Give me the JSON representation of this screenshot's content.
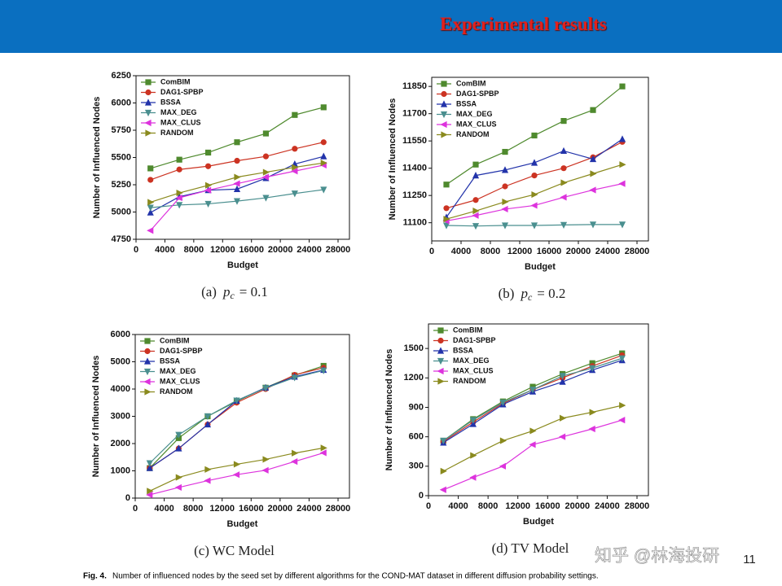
{
  "header": {
    "title": "Experimental results"
  },
  "chart_data": [
    {
      "type": "line",
      "caption": {
        "label": "(a)",
        "var": "p",
        "sub": "c",
        "rest": "= 0.1"
      },
      "x_label": "Budget",
      "y_label": "Number of Influenced Nodes",
      "legend": "upper left",
      "x": [
        2000,
        6000,
        10000,
        14000,
        18000,
        22000,
        26000
      ],
      "xlim": [
        0,
        28000
      ],
      "xticks": [
        0,
        4000,
        8000,
        12000,
        16000,
        20000,
        24000,
        28000
      ],
      "ylim": [
        4750,
        6250
      ],
      "yticks": [
        4750,
        5000,
        5250,
        5500,
        5750,
        6000,
        6250
      ],
      "series": [
        {
          "name": "ComBIM",
          "color": "#4f8a2e",
          "marker": "square",
          "values": [
            5400,
            5480,
            5545,
            5640,
            5720,
            5890,
            5960
          ]
        },
        {
          "name": "DAG1-SPBP",
          "color": "#cc3322",
          "marker": "circle",
          "values": [
            5295,
            5390,
            5420,
            5470,
            5510,
            5580,
            5640
          ]
        },
        {
          "name": "BSSA",
          "color": "#2233aa",
          "marker": "up",
          "values": [
            4995,
            5140,
            5200,
            5210,
            5310,
            5440,
            5510
          ]
        },
        {
          "name": "MAX_DEG",
          "color": "#4a8f8f",
          "marker": "down",
          "values": [
            5040,
            5065,
            5075,
            5100,
            5130,
            5170,
            5205
          ]
        },
        {
          "name": "MAX_CLUS",
          "color": "#dd33dd",
          "marker": "left",
          "values": [
            4830,
            5130,
            5200,
            5260,
            5320,
            5375,
            5430
          ]
        },
        {
          "name": "RANDOM",
          "color": "#8a8a1e",
          "marker": "right",
          "values": [
            5090,
            5175,
            5245,
            5320,
            5365,
            5410,
            5450
          ]
        }
      ]
    },
    {
      "type": "line",
      "caption": {
        "label": "(b)",
        "var": "p",
        "sub": "c",
        "rest": "= 0.2"
      },
      "x_label": "Budget",
      "y_label": "Number of Influenced Nodes",
      "legend": "upper left",
      "x": [
        2000,
        6000,
        10000,
        14000,
        18000,
        22000,
        26000
      ],
      "xlim": [
        0,
        28000
      ],
      "xticks": [
        0,
        4000,
        8000,
        12000,
        16000,
        20000,
        24000,
        28000
      ],
      "ylim": [
        11000,
        11900
      ],
      "yticks": [
        11100,
        11250,
        11400,
        11550,
        11700,
        11850
      ],
      "series": [
        {
          "name": "ComBIM",
          "color": "#4f8a2e",
          "marker": "square",
          "values": [
            11310,
            11420,
            11490,
            11580,
            11660,
            11720,
            11850
          ]
        },
        {
          "name": "DAG1-SPBP",
          "color": "#cc3322",
          "marker": "circle",
          "values": [
            11180,
            11225,
            11300,
            11360,
            11400,
            11460,
            11545
          ]
        },
        {
          "name": "BSSA",
          "color": "#2233aa",
          "marker": "up",
          "values": [
            11130,
            11360,
            11390,
            11430,
            11495,
            11450,
            11560
          ]
        },
        {
          "name": "MAX_DEG",
          "color": "#4a8f8f",
          "marker": "down",
          "values": [
            11085,
            11082,
            11085,
            11085,
            11088,
            11090,
            11090
          ]
        },
        {
          "name": "MAX_CLUS",
          "color": "#dd33dd",
          "marker": "left",
          "values": [
            11110,
            11140,
            11175,
            11195,
            11240,
            11280,
            11315
          ]
        },
        {
          "name": "RANDOM",
          "color": "#8a8a1e",
          "marker": "right",
          "values": [
            11120,
            11165,
            11215,
            11255,
            11320,
            11370,
            11420
          ]
        }
      ]
    },
    {
      "type": "line",
      "caption": {
        "label": "(c) WC Model"
      },
      "x_label": "Budget",
      "y_label": "Number of Influenced Nodes",
      "legend": "upper left",
      "x": [
        2000,
        6000,
        10000,
        14000,
        18000,
        22000,
        26000
      ],
      "xlim": [
        0,
        28000
      ],
      "xticks": [
        0,
        4000,
        8000,
        12000,
        16000,
        20000,
        24000,
        28000
      ],
      "ylim": [
        0,
        6000
      ],
      "yticks": [
        0,
        1000,
        2000,
        3000,
        4000,
        5000,
        6000
      ],
      "series": [
        {
          "name": "ComBIM",
          "color": "#4f8a2e",
          "marker": "square",
          "values": [
            1100,
            2200,
            3000,
            3550,
            4050,
            4500,
            4850
          ]
        },
        {
          "name": "DAG1-SPBP",
          "color": "#cc3322",
          "marker": "circle",
          "values": [
            1100,
            1820,
            2700,
            3500,
            4000,
            4520,
            4780
          ]
        },
        {
          "name": "BSSA",
          "color": "#2233aa",
          "marker": "up",
          "values": [
            1100,
            1820,
            2700,
            3570,
            4050,
            4450,
            4700
          ]
        },
        {
          "name": "MAX_DEG",
          "color": "#4a8f8f",
          "marker": "down",
          "values": [
            1280,
            2320,
            3000,
            3580,
            4030,
            4420,
            4680
          ]
        },
        {
          "name": "MAX_CLUS",
          "color": "#dd33dd",
          "marker": "left",
          "values": [
            120,
            390,
            640,
            860,
            1020,
            1340,
            1660
          ]
        },
        {
          "name": "RANDOM",
          "color": "#8a8a1e",
          "marker": "right",
          "values": [
            260,
            760,
            1050,
            1240,
            1420,
            1650,
            1840
          ]
        }
      ]
    },
    {
      "type": "line",
      "caption": {
        "label": "(d) TV Model"
      },
      "x_label": "Budget",
      "y_label": "Number of Influenced Nodes",
      "legend": "upper left",
      "x": [
        2000,
        6000,
        10000,
        14000,
        18000,
        22000,
        26000
      ],
      "xlim": [
        0,
        28000
      ],
      "xticks": [
        0,
        4000,
        8000,
        12000,
        16000,
        20000,
        24000,
        28000
      ],
      "ylim": [
        0,
        1750
      ],
      "yticks": [
        0,
        300,
        600,
        900,
        1200,
        1500
      ],
      "series": [
        {
          "name": "ComBIM",
          "color": "#4f8a2e",
          "marker": "square",
          "values": [
            560,
            780,
            960,
            1110,
            1240,
            1350,
            1450
          ]
        },
        {
          "name": "DAG1-SPBP",
          "color": "#cc3322",
          "marker": "circle",
          "values": [
            550,
            750,
            940,
            1080,
            1200,
            1320,
            1430
          ]
        },
        {
          "name": "BSSA",
          "color": "#2233aa",
          "marker": "up",
          "values": [
            540,
            730,
            930,
            1060,
            1160,
            1280,
            1380
          ]
        },
        {
          "name": "MAX_DEG",
          "color": "#4a8f8f",
          "marker": "down",
          "values": [
            560,
            770,
            950,
            1080,
            1220,
            1300,
            1400
          ]
        },
        {
          "name": "MAX_CLUS",
          "color": "#dd33dd",
          "marker": "left",
          "values": [
            60,
            185,
            300,
            520,
            600,
            680,
            770
          ]
        },
        {
          "name": "RANDOM",
          "color": "#8a8a1e",
          "marker": "right",
          "values": [
            250,
            410,
            560,
            660,
            790,
            850,
            920
          ]
        }
      ]
    }
  ],
  "figure_caption": {
    "label": "Fig. 4.",
    "text": "Number of influenced nodes by the seed set by different algorithms for the COND-MAT dataset in different diffusion probability settings."
  },
  "watermark": "知乎 @林海投研",
  "page_number": "11"
}
